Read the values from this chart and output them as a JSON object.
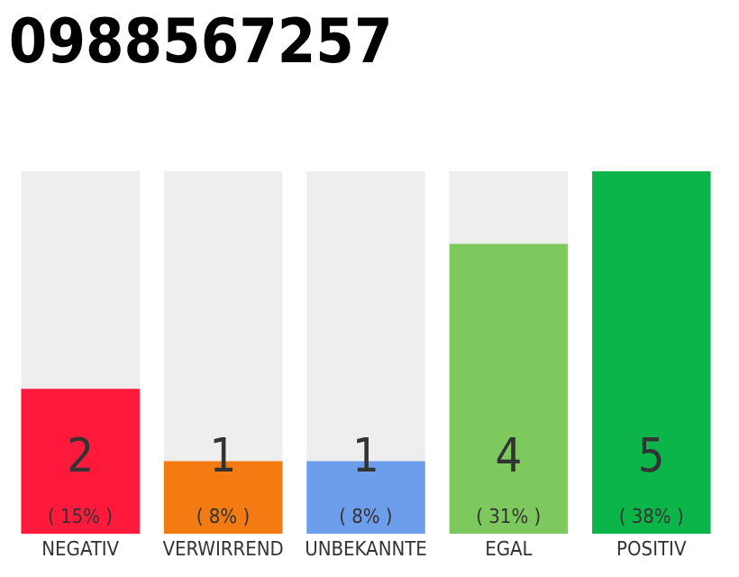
{
  "chart_data": {
    "type": "bar",
    "title": "0988567257",
    "categories": [
      "NEGATIV",
      "VERWIRREND",
      "UNBEKANNTE",
      "EGAL",
      "POSITIV"
    ],
    "values": [
      2,
      1,
      1,
      4,
      5
    ],
    "colors": [
      "#ff1a3c",
      "#f47b12",
      "#6d9eeb",
      "#7dc95e",
      "#0bb54a"
    ],
    "value_labels": [
      "2\n( 15% )",
      "1\n( 8% )",
      "1\n( 8% )",
      "4\n( 31% )",
      "5\n( 38% )"
    ],
    "ylim": [
      0,
      5
    ],
    "tick_labels": "x",
    "grid": false
  }
}
